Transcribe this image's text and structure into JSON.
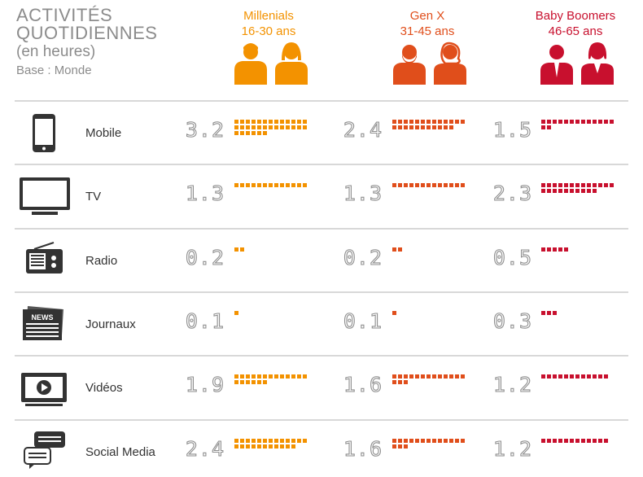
{
  "title": {
    "line1": "ACTIVITÉS",
    "line2": "QUOTIDIENNES",
    "unit": "(en heures)",
    "base": "Base : Monde"
  },
  "generations": [
    {
      "name": "Millenials",
      "range": "16-30 ans",
      "color": "#f39200"
    },
    {
      "name": "Gen X",
      "range": "31-45 ans",
      "color": "#e04e1b"
    },
    {
      "name": "Baby Boomers",
      "range": "46-65 ans",
      "color": "#c8102e"
    }
  ],
  "chart_data": {
    "type": "table",
    "title": "ACTIVITÉS QUOTIDIENNES",
    "subtitle": "(en heures)",
    "columns": [
      "Millenials 16-30 ans",
      "Gen X 31-45 ans",
      "Baby Boomers 46-65 ans"
    ],
    "categories": [
      "Mobile",
      "TV",
      "Radio",
      "Journaux",
      "Vidéos",
      "Social Media"
    ],
    "icons": [
      "smartphone-icon",
      "tv-icon",
      "radio-icon",
      "newspaper-icon",
      "video-player-icon",
      "chat-bubbles-icon"
    ],
    "series": [
      {
        "name": "Millenials",
        "color": "#f39200",
        "values": [
          3.2,
          1.3,
          0.2,
          0.1,
          1.9,
          2.4
        ],
        "labels": [
          "3.2",
          "1.3",
          "0.2",
          "0.1",
          "1.9",
          "2.4"
        ]
      },
      {
        "name": "Gen X",
        "color": "#e04e1b",
        "values": [
          2.4,
          1.3,
          0.2,
          0.1,
          1.6,
          1.6
        ],
        "labels": [
          "2.4",
          "1.3",
          "0.2",
          "0.1",
          "1.6",
          "1.6"
        ]
      },
      {
        "name": "Baby Boomers",
        "color": "#c8102e",
        "values": [
          1.5,
          2.3,
          0.5,
          0.3,
          1.2,
          1.2
        ],
        "labels": [
          "1.5",
          "2.3",
          "0.5",
          "0.3",
          "1.2",
          "1.2"
        ]
      }
    ]
  }
}
